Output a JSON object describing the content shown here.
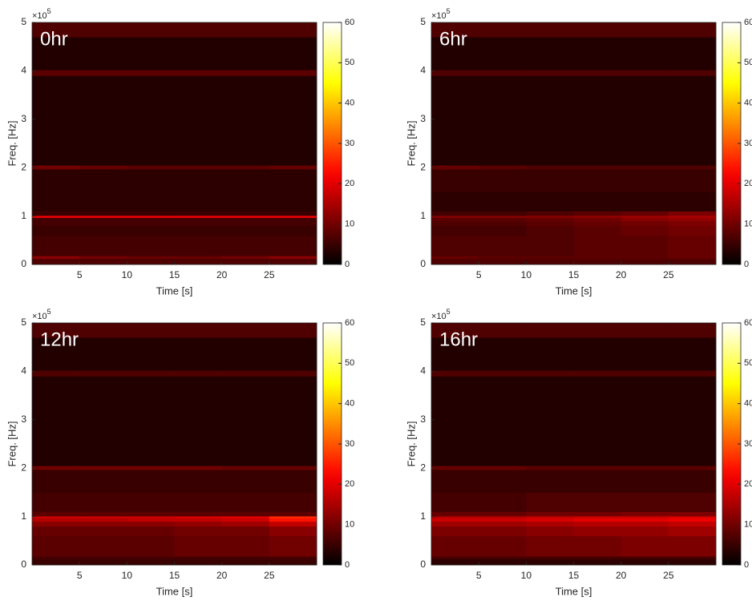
{
  "chart_data": [
    {
      "type": "heatmap",
      "annotation": "0hr",
      "xlabel": "Time [s]",
      "ylabel": "Freq. [Hz]",
      "colormap": "hot",
      "xlim": [
        0,
        30
      ],
      "ylim": [
        0,
        500000
      ],
      "xticks": [
        5,
        10,
        15,
        20,
        25
      ],
      "yticks": [
        {
          "value": 0,
          "label": "0"
        },
        {
          "value": 100000,
          "label": "1"
        },
        {
          "value": 200000,
          "label": "2"
        },
        {
          "value": 300000,
          "label": "3"
        },
        {
          "value": 400000,
          "label": "4"
        },
        {
          "value": 500000,
          "label": "5"
        }
      ],
      "y_exponent_base": "×10",
      "y_exponent": "5",
      "clim": [
        0,
        60
      ],
      "cticks": [
        0,
        10,
        20,
        30,
        40,
        50,
        60
      ],
      "xbins": [
        0,
        5,
        10,
        15,
        20,
        25,
        30
      ],
      "ybins": [
        0,
        12000,
        18000,
        60000,
        80000,
        90000,
        97000,
        101000,
        110000,
        150000,
        197000,
        205000,
        390000,
        402000,
        470000,
        500000
      ],
      "z": [
        [
          7,
          7,
          7,
          7,
          7,
          7
        ],
        [
          12,
          10,
          9,
          9,
          10,
          12
        ],
        [
          6,
          6,
          6,
          6,
          6,
          6
        ],
        [
          5,
          5,
          5,
          5,
          5,
          5
        ],
        [
          6,
          6,
          6,
          6,
          6,
          6
        ],
        [
          6,
          6,
          6,
          6,
          6,
          6
        ],
        [
          22,
          22,
          22,
          22,
          22,
          22
        ],
        [
          5,
          5,
          5,
          5,
          5,
          5
        ],
        [
          4,
          4,
          4,
          4,
          4,
          4
        ],
        [
          4,
          4,
          4,
          4,
          4,
          4
        ],
        [
          10,
          9,
          8,
          8,
          8,
          9
        ],
        [
          3,
          3,
          3,
          3,
          3,
          3
        ],
        [
          8,
          8,
          8,
          8,
          8,
          8
        ],
        [
          3,
          3,
          3,
          3,
          3,
          3
        ],
        [
          7,
          7,
          7,
          7,
          7,
          7
        ]
      ]
    },
    {
      "type": "heatmap",
      "annotation": "6hr",
      "xlabel": "Time [s]",
      "ylabel": "Freq. [Hz]",
      "colormap": "hot",
      "xlim": [
        0,
        30
      ],
      "ylim": [
        0,
        500000
      ],
      "xticks": [
        5,
        10,
        15,
        20,
        25
      ],
      "yticks": [
        {
          "value": 0,
          "label": "0"
        },
        {
          "value": 100000,
          "label": "1"
        },
        {
          "value": 200000,
          "label": "2"
        },
        {
          "value": 300000,
          "label": "3"
        },
        {
          "value": 400000,
          "label": "4"
        },
        {
          "value": 500000,
          "label": "5"
        }
      ],
      "y_exponent_base": "×10",
      "y_exponent": "5",
      "clim": [
        0,
        60
      ],
      "cticks": [
        0,
        10,
        20,
        30,
        40,
        50,
        60
      ],
      "xbins": [
        0,
        5,
        10,
        15,
        20,
        25,
        30
      ],
      "ybins": [
        0,
        12000,
        18000,
        60000,
        80000,
        90000,
        97000,
        101000,
        110000,
        150000,
        197000,
        205000,
        390000,
        402000,
        470000,
        500000
      ],
      "z": [
        [
          7,
          7,
          7,
          7,
          7,
          7
        ],
        [
          9,
          8,
          8,
          8,
          8,
          9
        ],
        [
          7,
          7,
          7,
          8,
          8,
          9
        ],
        [
          6,
          6,
          7,
          8,
          9,
          10
        ],
        [
          7,
          7,
          8,
          9,
          10,
          11
        ],
        [
          8,
          8,
          9,
          10,
          12,
          13
        ],
        [
          12,
          12,
          12,
          13,
          14,
          15
        ],
        [
          6,
          6,
          7,
          8,
          9,
          11
        ],
        [
          4,
          4,
          4,
          4,
          4,
          4
        ],
        [
          5,
          5,
          5,
          5,
          5,
          5
        ],
        [
          9,
          8,
          7,
          7,
          7,
          7
        ],
        [
          3,
          3,
          3,
          3,
          3,
          3
        ],
        [
          7,
          7,
          7,
          7,
          7,
          7
        ],
        [
          3,
          3,
          3,
          3,
          3,
          3
        ],
        [
          7,
          7,
          7,
          7,
          7,
          7
        ]
      ]
    },
    {
      "type": "heatmap",
      "annotation": "12hr",
      "xlabel": "Time [s]",
      "ylabel": "Freq. [Hz]",
      "colormap": "hot",
      "xlim": [
        0,
        30
      ],
      "ylim": [
        0,
        500000
      ],
      "xticks": [
        5,
        10,
        15,
        20,
        25
      ],
      "yticks": [
        {
          "value": 0,
          "label": "0"
        },
        {
          "value": 100000,
          "label": "1"
        },
        {
          "value": 200000,
          "label": "2"
        },
        {
          "value": 300000,
          "label": "3"
        },
        {
          "value": 400000,
          "label": "4"
        },
        {
          "value": 500000,
          "label": "5"
        }
      ],
      "y_exponent_base": "×10",
      "y_exponent": "5",
      "clim": [
        0,
        60
      ],
      "cticks": [
        0,
        10,
        20,
        30,
        40,
        50,
        60
      ],
      "xbins": [
        0,
        5,
        10,
        15,
        20,
        25,
        30
      ],
      "ybins": [
        0,
        12000,
        18000,
        60000,
        80000,
        90000,
        97000,
        101000,
        110000,
        150000,
        197000,
        205000,
        390000,
        402000,
        470000,
        500000
      ],
      "z": [
        [
          5,
          5,
          5,
          5,
          5,
          5
        ],
        [
          6,
          6,
          6,
          6,
          6,
          6
        ],
        [
          8,
          8,
          8,
          9,
          9,
          10
        ],
        [
          9,
          9,
          9,
          10,
          10,
          12
        ],
        [
          12,
          12,
          12,
          13,
          14,
          17
        ],
        [
          16,
          16,
          17,
          17,
          18,
          24
        ],
        [
          18,
          18,
          18,
          19,
          20,
          26
        ],
        [
          8,
          8,
          8,
          8,
          8,
          8
        ],
        [
          6,
          6,
          6,
          6,
          6,
          6
        ],
        [
          5,
          5,
          5,
          5,
          5,
          5
        ],
        [
          10,
          10,
          10,
          10,
          9,
          9
        ],
        [
          3,
          3,
          3,
          3,
          3,
          3
        ],
        [
          7,
          7,
          7,
          7,
          7,
          7
        ],
        [
          3,
          3,
          3,
          3,
          3,
          3
        ],
        [
          7,
          7,
          7,
          7,
          7,
          7
        ]
      ]
    },
    {
      "type": "heatmap",
      "annotation": "16hr",
      "xlabel": "Time [s]",
      "ylabel": "Freq. [Hz]",
      "colormap": "hot",
      "xlim": [
        0,
        30
      ],
      "ylim": [
        0,
        500000
      ],
      "xticks": [
        5,
        10,
        15,
        20,
        25
      ],
      "yticks": [
        {
          "value": 0,
          "label": "0"
        },
        {
          "value": 100000,
          "label": "1"
        },
        {
          "value": 200000,
          "label": "2"
        },
        {
          "value": 300000,
          "label": "3"
        },
        {
          "value": 400000,
          "label": "4"
        },
        {
          "value": 500000,
          "label": "5"
        }
      ],
      "y_exponent_base": "×10",
      "y_exponent": "5",
      "clim": [
        0,
        60
      ],
      "cticks": [
        0,
        10,
        20,
        30,
        40,
        50,
        60
      ],
      "xbins": [
        0,
        5,
        10,
        15,
        20,
        25,
        30
      ],
      "ybins": [
        0,
        12000,
        18000,
        60000,
        80000,
        90000,
        97000,
        101000,
        110000,
        150000,
        197000,
        205000,
        390000,
        402000,
        470000,
        500000
      ],
      "z": [
        [
          4,
          4,
          4,
          4,
          4,
          4
        ],
        [
          6,
          6,
          6,
          6,
          6,
          6
        ],
        [
          9,
          9,
          10,
          10,
          11,
          11
        ],
        [
          11,
          11,
          12,
          13,
          13,
          14
        ],
        [
          14,
          14,
          15,
          16,
          16,
          17
        ],
        [
          18,
          18,
          19,
          20,
          20,
          21
        ],
        [
          16,
          16,
          17,
          18,
          18,
          19
        ],
        [
          9,
          9,
          10,
          10,
          11,
          11
        ],
        [
          6,
          6,
          7,
          7,
          7,
          7
        ],
        [
          5,
          5,
          5,
          5,
          5,
          5
        ],
        [
          9,
          9,
          8,
          8,
          8,
          8
        ],
        [
          3,
          3,
          3,
          3,
          3,
          3
        ],
        [
          7,
          7,
          7,
          7,
          7,
          7
        ],
        [
          3,
          3,
          3,
          3,
          3,
          3
        ],
        [
          7,
          7,
          7,
          7,
          7,
          7
        ]
      ]
    }
  ]
}
